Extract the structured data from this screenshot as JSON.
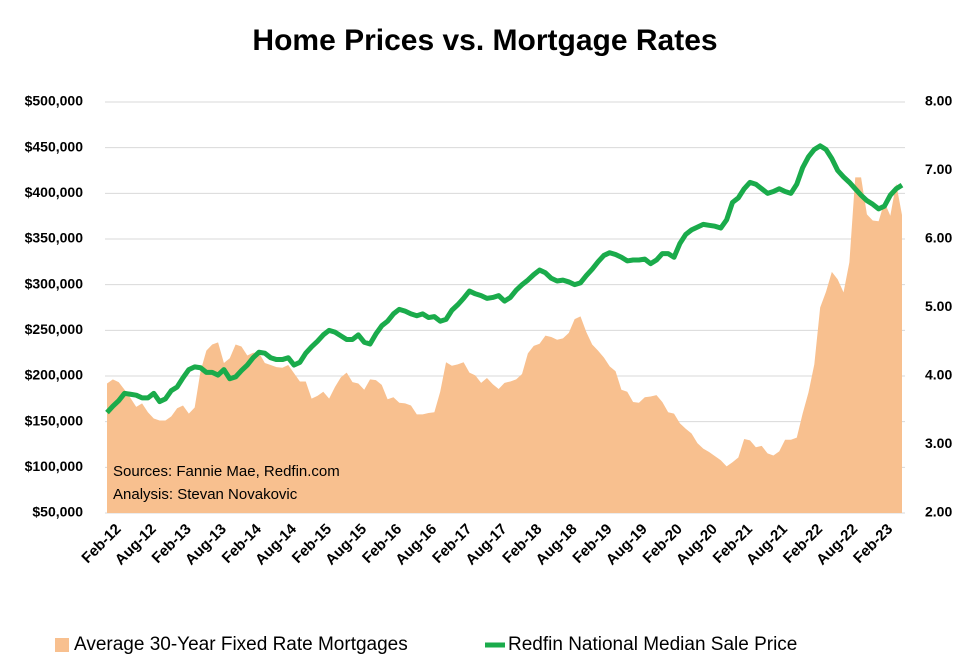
{
  "chart_data": {
    "type": "line-area",
    "title": "Home Prices vs. Mortgage Rates",
    "annotations": [
      "Sources: Fannie Mae, Redfin.com",
      "Analysis: Stevan Novakovic"
    ],
    "categories": [
      "Feb-12",
      null,
      null,
      null,
      null,
      null,
      "Aug-12",
      null,
      null,
      null,
      null,
      null,
      "Feb-13",
      null,
      null,
      null,
      null,
      null,
      "Aug-13",
      null,
      null,
      null,
      null,
      null,
      "Feb-14",
      null,
      null,
      null,
      null,
      null,
      "Aug-14",
      null,
      null,
      null,
      null,
      null,
      "Feb-15",
      null,
      null,
      null,
      null,
      null,
      "Aug-15",
      null,
      null,
      null,
      null,
      null,
      "Feb-16",
      null,
      null,
      null,
      null,
      null,
      "Aug-16",
      null,
      null,
      null,
      null,
      null,
      "Feb-17",
      null,
      null,
      null,
      null,
      null,
      "Aug-17",
      null,
      null,
      null,
      null,
      null,
      "Feb-18",
      null,
      null,
      null,
      null,
      null,
      "Aug-18",
      null,
      null,
      null,
      null,
      null,
      "Feb-19",
      null,
      null,
      null,
      null,
      null,
      "Aug-19",
      null,
      null,
      null,
      null,
      null,
      "Feb-20",
      null,
      null,
      null,
      null,
      null,
      "Aug-20",
      null,
      null,
      null,
      null,
      null,
      "Feb-21",
      null,
      null,
      null,
      null,
      null,
      "Aug-21",
      null,
      null,
      null,
      null,
      null,
      "Feb-22",
      null,
      null,
      null,
      null,
      null,
      "Aug-22",
      null,
      null,
      null,
      null,
      null,
      "Feb-23",
      null,
      null,
      null,
      null
    ],
    "series": [
      {
        "name": "Average 30-Year Fixed Rate Mortgages",
        "kind": "area",
        "axis": "y2",
        "color": "#f8c08f",
        "values": [
          3.89,
          3.95,
          3.91,
          3.8,
          3.68,
          3.55,
          3.6,
          3.47,
          3.38,
          3.35,
          3.35,
          3.41,
          3.53,
          3.57,
          3.45,
          3.54,
          4.07,
          4.37,
          4.46,
          4.49,
          4.19,
          4.26,
          4.46,
          4.43,
          4.3,
          4.34,
          4.34,
          4.19,
          4.16,
          4.13,
          4.12,
          4.16,
          4.04,
          3.92,
          3.92,
          3.67,
          3.71,
          3.77,
          3.67,
          3.84,
          3.98,
          4.05,
          3.91,
          3.89,
          3.8,
          3.95,
          3.94,
          3.87,
          3.66,
          3.69,
          3.61,
          3.6,
          3.57,
          3.44,
          3.44,
          3.46,
          3.47,
          3.77,
          4.2,
          4.15,
          4.17,
          4.2,
          4.05,
          4.01,
          3.9,
          3.97,
          3.88,
          3.81,
          3.9,
          3.92,
          3.95,
          4.03,
          4.33,
          4.44,
          4.47,
          4.59,
          4.57,
          4.53,
          4.55,
          4.63,
          4.83,
          4.87,
          4.64,
          4.46,
          4.37,
          4.27,
          4.14,
          4.07,
          3.8,
          3.77,
          3.62,
          3.61,
          3.69,
          3.7,
          3.72,
          3.62,
          3.47,
          3.45,
          3.31,
          3.23,
          3.16,
          3.02,
          2.94,
          2.89,
          2.83,
          2.77,
          2.68,
          2.74,
          2.81,
          3.08,
          3.06,
          2.96,
          2.98,
          2.87,
          2.84,
          2.9,
          3.07,
          3.07,
          3.1,
          3.45,
          3.76,
          4.17,
          5.0,
          5.23,
          5.52,
          5.41,
          5.22,
          5.66,
          6.9,
          6.9,
          6.36,
          6.27,
          6.26,
          6.54,
          6.34,
          6.81,
          6.35
        ]
      },
      {
        "name": "Redfin National Median Sale Price",
        "kind": "line",
        "axis": "y",
        "color": "#1aab4b",
        "values": [
          160000,
          167000,
          173000,
          181000,
          180000,
          179000,
          176000,
          176000,
          181000,
          172000,
          175000,
          184000,
          188000,
          198000,
          207000,
          210000,
          209000,
          204000,
          204000,
          201000,
          207000,
          197000,
          199000,
          206000,
          212000,
          220000,
          226000,
          225000,
          220000,
          218000,
          218000,
          220000,
          212000,
          215000,
          225000,
          232000,
          238000,
          245000,
          250000,
          248000,
          244000,
          240000,
          240000,
          245000,
          237000,
          235000,
          246000,
          255000,
          260000,
          268000,
          273000,
          271000,
          268000,
          266000,
          268000,
          264000,
          265000,
          260000,
          262000,
          272000,
          278000,
          285000,
          293000,
          290000,
          288000,
          285000,
          286000,
          288000,
          282000,
          286000,
          294000,
          300000,
          305000,
          311000,
          316000,
          313000,
          307000,
          304000,
          305000,
          303000,
          300000,
          302000,
          310000,
          317000,
          325000,
          332000,
          335000,
          333000,
          330000,
          326000,
          327000,
          327000,
          328000,
          323000,
          327000,
          334000,
          334000,
          330000,
          345000,
          355000,
          360000,
          363000,
          366000,
          365000,
          364000,
          362000,
          371000,
          390000,
          395000,
          405000,
          412000,
          410000,
          405000,
          400000,
          402000,
          405000,
          402000,
          400000,
          410000,
          428000,
          440000,
          448000,
          452000,
          448000,
          438000,
          425000,
          418000,
          412000,
          405000,
          398000,
          392000,
          388000,
          383000,
          386000,
          398000,
          405000,
          409000
        ]
      }
    ],
    "ylim": [
      50000,
      500000
    ],
    "yticks": [
      {
        "value": 50000,
        "label": "$50,000"
      },
      {
        "value": 100000,
        "label": "$100,000"
      },
      {
        "value": 150000,
        "label": "$150,000"
      },
      {
        "value": 200000,
        "label": "$200,000"
      },
      {
        "value": 250000,
        "label": "$250,000"
      },
      {
        "value": 300000,
        "label": "$300,000"
      },
      {
        "value": 350000,
        "label": "$350,000"
      },
      {
        "value": 400000,
        "label": "$400,000"
      },
      {
        "value": 450000,
        "label": "$450,000"
      },
      {
        "value": 500000,
        "label": "$500,000"
      }
    ],
    "y2lim": [
      2,
      8
    ],
    "y2ticks": [
      {
        "value": 2,
        "label": "2.00"
      },
      {
        "value": 3,
        "label": "3.00"
      },
      {
        "value": 4,
        "label": "4.00"
      },
      {
        "value": 5,
        "label": "5.00"
      },
      {
        "value": 6,
        "label": "6.00"
      },
      {
        "value": 7,
        "label": "7.00"
      },
      {
        "value": 8,
        "label": "8.00"
      }
    ],
    "grid": true,
    "legend": "bottom"
  }
}
